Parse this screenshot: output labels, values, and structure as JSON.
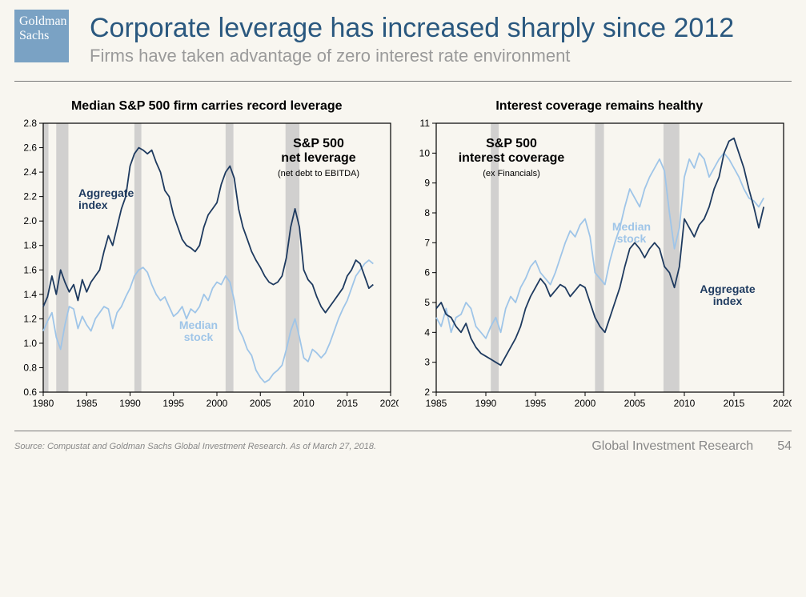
{
  "logo": {
    "line1": "Goldman",
    "line2": "Sachs"
  },
  "title": "Corporate leverage has increased sharply since 2012",
  "subtitle": "Firms have taken advantage of zero interest rate environment",
  "footer": {
    "source": "Source: Compustat and Goldman Sachs Global Investment Research. As of March 27, 2018.",
    "group": "Global Investment Research",
    "page": "54"
  },
  "colors": {
    "aggregate": "#1e3a5f",
    "median": "#9fc5e8",
    "recession": "#c0c0c0",
    "axis": "#000000",
    "grid": "#d0d0d0",
    "bg": "#f8f6f0"
  },
  "chart_left": {
    "title": "Median S&P 500 firm carries record leverage",
    "annotation_title": "S&P 500\nnet leverage",
    "annotation_sub": "(net debt to EBITDA)",
    "label_aggregate": "Aggregate\nindex",
    "label_median": "Median\nstock",
    "type": "line",
    "x_domain": [
      1980,
      2020
    ],
    "x_ticks": [
      1980,
      1985,
      1990,
      1995,
      2000,
      2005,
      2010,
      2015,
      2020
    ],
    "y_domain": [
      0.6,
      2.8
    ],
    "y_ticks": [
      0.6,
      0.8,
      1.0,
      1.2,
      1.4,
      1.6,
      1.8,
      2.0,
      2.2,
      2.4,
      2.6,
      2.8
    ],
    "tick_fontsize": 12,
    "line_width": 1.8,
    "recessions": [
      [
        1980,
        1980.6
      ],
      [
        1981.5,
        1982.9
      ],
      [
        1990.5,
        1991.3
      ],
      [
        2001,
        2001.9
      ],
      [
        2007.9,
        2009.5
      ]
    ],
    "series_aggregate": [
      [
        1980,
        1.3
      ],
      [
        1980.5,
        1.38
      ],
      [
        1981,
        1.55
      ],
      [
        1981.5,
        1.4
      ],
      [
        1982,
        1.6
      ],
      [
        1982.5,
        1.5
      ],
      [
        1983,
        1.42
      ],
      [
        1983.5,
        1.48
      ],
      [
        1984,
        1.35
      ],
      [
        1984.5,
        1.52
      ],
      [
        1985,
        1.42
      ],
      [
        1985.5,
        1.5
      ],
      [
        1986,
        1.55
      ],
      [
        1986.5,
        1.6
      ],
      [
        1987,
        1.75
      ],
      [
        1987.5,
        1.88
      ],
      [
        1988,
        1.8
      ],
      [
        1988.5,
        1.95
      ],
      [
        1989,
        2.1
      ],
      [
        1989.5,
        2.2
      ],
      [
        1990,
        2.45
      ],
      [
        1990.5,
        2.55
      ],
      [
        1991,
        2.6
      ],
      [
        1991.5,
        2.58
      ],
      [
        1992,
        2.55
      ],
      [
        1992.5,
        2.58
      ],
      [
        1993,
        2.48
      ],
      [
        1993.5,
        2.4
      ],
      [
        1994,
        2.25
      ],
      [
        1994.5,
        2.2
      ],
      [
        1995,
        2.05
      ],
      [
        1995.5,
        1.95
      ],
      [
        1996,
        1.85
      ],
      [
        1996.5,
        1.8
      ],
      [
        1997,
        1.78
      ],
      [
        1997.5,
        1.75
      ],
      [
        1998,
        1.8
      ],
      [
        1998.5,
        1.95
      ],
      [
        1999,
        2.05
      ],
      [
        1999.5,
        2.1
      ],
      [
        2000,
        2.15
      ],
      [
        2000.5,
        2.3
      ],
      [
        2001,
        2.4
      ],
      [
        2001.5,
        2.45
      ],
      [
        2002,
        2.35
      ],
      [
        2002.5,
        2.1
      ],
      [
        2003,
        1.95
      ],
      [
        2003.5,
        1.85
      ],
      [
        2004,
        1.75
      ],
      [
        2004.5,
        1.68
      ],
      [
        2005,
        1.62
      ],
      [
        2005.5,
        1.55
      ],
      [
        2006,
        1.5
      ],
      [
        2006.5,
        1.48
      ],
      [
        2007,
        1.5
      ],
      [
        2007.5,
        1.55
      ],
      [
        2008,
        1.7
      ],
      [
        2008.5,
        1.95
      ],
      [
        2009,
        2.1
      ],
      [
        2009.5,
        1.95
      ],
      [
        2010,
        1.6
      ],
      [
        2010.5,
        1.52
      ],
      [
        2011,
        1.48
      ],
      [
        2011.5,
        1.38
      ],
      [
        2012,
        1.3
      ],
      [
        2012.5,
        1.25
      ],
      [
        2013,
        1.3
      ],
      [
        2013.5,
        1.35
      ],
      [
        2014,
        1.4
      ],
      [
        2014.5,
        1.45
      ],
      [
        2015,
        1.55
      ],
      [
        2015.5,
        1.6
      ],
      [
        2016,
        1.68
      ],
      [
        2016.5,
        1.65
      ],
      [
        2017,
        1.55
      ],
      [
        2017.5,
        1.45
      ],
      [
        2018,
        1.48
      ]
    ],
    "series_median": [
      [
        1980,
        1.1
      ],
      [
        1980.5,
        1.18
      ],
      [
        1981,
        1.25
      ],
      [
        1981.5,
        1.05
      ],
      [
        1982,
        0.95
      ],
      [
        1982.5,
        1.15
      ],
      [
        1983,
        1.3
      ],
      [
        1983.5,
        1.28
      ],
      [
        1984,
        1.12
      ],
      [
        1984.5,
        1.22
      ],
      [
        1985,
        1.15
      ],
      [
        1985.5,
        1.1
      ],
      [
        1986,
        1.2
      ],
      [
        1986.5,
        1.25
      ],
      [
        1987,
        1.3
      ],
      [
        1987.5,
        1.28
      ],
      [
        1988,
        1.12
      ],
      [
        1988.5,
        1.25
      ],
      [
        1989,
        1.3
      ],
      [
        1989.5,
        1.38
      ],
      [
        1990,
        1.45
      ],
      [
        1990.5,
        1.55
      ],
      [
        1991,
        1.6
      ],
      [
        1991.5,
        1.62
      ],
      [
        1992,
        1.58
      ],
      [
        1992.5,
        1.48
      ],
      [
        1993,
        1.4
      ],
      [
        1993.5,
        1.35
      ],
      [
        1994,
        1.38
      ],
      [
        1994.5,
        1.3
      ],
      [
        1995,
        1.22
      ],
      [
        1995.5,
        1.25
      ],
      [
        1996,
        1.3
      ],
      [
        1996.5,
        1.2
      ],
      [
        1997,
        1.28
      ],
      [
        1997.5,
        1.25
      ],
      [
        1998,
        1.3
      ],
      [
        1998.5,
        1.4
      ],
      [
        1999,
        1.35
      ],
      [
        1999.5,
        1.45
      ],
      [
        2000,
        1.5
      ],
      [
        2000.5,
        1.48
      ],
      [
        2001,
        1.55
      ],
      [
        2001.5,
        1.5
      ],
      [
        2002,
        1.35
      ],
      [
        2002.5,
        1.12
      ],
      [
        2003,
        1.05
      ],
      [
        2003.5,
        0.95
      ],
      [
        2004,
        0.9
      ],
      [
        2004.5,
        0.78
      ],
      [
        2005,
        0.72
      ],
      [
        2005.5,
        0.68
      ],
      [
        2006,
        0.7
      ],
      [
        2006.5,
        0.75
      ],
      [
        2007,
        0.78
      ],
      [
        2007.5,
        0.82
      ],
      [
        2008,
        0.95
      ],
      [
        2008.5,
        1.1
      ],
      [
        2009,
        1.2
      ],
      [
        2009.5,
        1.05
      ],
      [
        2010,
        0.88
      ],
      [
        2010.5,
        0.85
      ],
      [
        2011,
        0.95
      ],
      [
        2011.5,
        0.92
      ],
      [
        2012,
        0.88
      ],
      [
        2012.5,
        0.92
      ],
      [
        2013,
        1.0
      ],
      [
        2013.5,
        1.1
      ],
      [
        2014,
        1.2
      ],
      [
        2014.5,
        1.28
      ],
      [
        2015,
        1.35
      ],
      [
        2015.5,
        1.45
      ],
      [
        2016,
        1.55
      ],
      [
        2016.5,
        1.6
      ],
      [
        2017,
        1.65
      ],
      [
        2017.5,
        1.68
      ],
      [
        2018,
        1.65
      ]
    ]
  },
  "chart_right": {
    "title": "Interest coverage remains healthy",
    "annotation_title": "S&P 500\ninterest coverage",
    "annotation_sub": "(ex Financials)",
    "label_aggregate": "Aggregate\nindex",
    "label_median": "Median\nstock",
    "type": "line",
    "x_domain": [
      1985,
      2020
    ],
    "x_ticks": [
      1985,
      1990,
      1995,
      2000,
      2005,
      2010,
      2015,
      2020
    ],
    "y_domain": [
      2,
      11
    ],
    "y_ticks": [
      2,
      3,
      4,
      5,
      6,
      7,
      8,
      9,
      10,
      11
    ],
    "tick_fontsize": 12,
    "line_width": 1.8,
    "recessions": [
      [
        1990.5,
        1991.3
      ],
      [
        2001,
        2001.9
      ],
      [
        2007.9,
        2009.5
      ]
    ],
    "series_aggregate": [
      [
        1985,
        4.8
      ],
      [
        1985.5,
        5.0
      ],
      [
        1986,
        4.6
      ],
      [
        1986.5,
        4.5
      ],
      [
        1987,
        4.2
      ],
      [
        1987.5,
        4.0
      ],
      [
        1988,
        4.3
      ],
      [
        1988.5,
        3.8
      ],
      [
        1989,
        3.5
      ],
      [
        1989.5,
        3.3
      ],
      [
        1990,
        3.2
      ],
      [
        1990.5,
        3.1
      ],
      [
        1991,
        3.0
      ],
      [
        1991.5,
        2.9
      ],
      [
        1992,
        3.2
      ],
      [
        1992.5,
        3.5
      ],
      [
        1993,
        3.8
      ],
      [
        1993.5,
        4.2
      ],
      [
        1994,
        4.8
      ],
      [
        1994.5,
        5.2
      ],
      [
        1995,
        5.5
      ],
      [
        1995.5,
        5.8
      ],
      [
        1996,
        5.6
      ],
      [
        1996.5,
        5.2
      ],
      [
        1997,
        5.4
      ],
      [
        1997.5,
        5.6
      ],
      [
        1998,
        5.5
      ],
      [
        1998.5,
        5.2
      ],
      [
        1999,
        5.4
      ],
      [
        1999.5,
        5.6
      ],
      [
        2000,
        5.5
      ],
      [
        2000.5,
        5.0
      ],
      [
        2001,
        4.5
      ],
      [
        2001.5,
        4.2
      ],
      [
        2002,
        4.0
      ],
      [
        2002.5,
        4.5
      ],
      [
        2003,
        5.0
      ],
      [
        2003.5,
        5.5
      ],
      [
        2004,
        6.2
      ],
      [
        2004.5,
        6.8
      ],
      [
        2005,
        7.0
      ],
      [
        2005.5,
        6.8
      ],
      [
        2006,
        6.5
      ],
      [
        2006.5,
        6.8
      ],
      [
        2007,
        7.0
      ],
      [
        2007.5,
        6.8
      ],
      [
        2008,
        6.2
      ],
      [
        2008.5,
        6.0
      ],
      [
        2009,
        5.5
      ],
      [
        2009.5,
        6.2
      ],
      [
        2010,
        7.8
      ],
      [
        2010.5,
        7.5
      ],
      [
        2011,
        7.2
      ],
      [
        2011.5,
        7.6
      ],
      [
        2012,
        7.8
      ],
      [
        2012.5,
        8.2
      ],
      [
        2013,
        8.8
      ],
      [
        2013.5,
        9.2
      ],
      [
        2014,
        10.0
      ],
      [
        2014.5,
        10.4
      ],
      [
        2015,
        10.5
      ],
      [
        2015.5,
        10.0
      ],
      [
        2016,
        9.5
      ],
      [
        2016.5,
        8.8
      ],
      [
        2017,
        8.2
      ],
      [
        2017.5,
        7.5
      ],
      [
        2018,
        8.2
      ]
    ],
    "series_median": [
      [
        1985,
        4.5
      ],
      [
        1985.5,
        4.2
      ],
      [
        1986,
        4.8
      ],
      [
        1986.5,
        4.0
      ],
      [
        1987,
        4.5
      ],
      [
        1987.5,
        4.6
      ],
      [
        1988,
        5.0
      ],
      [
        1988.5,
        4.8
      ],
      [
        1989,
        4.2
      ],
      [
        1989.5,
        4.0
      ],
      [
        1990,
        3.8
      ],
      [
        1990.5,
        4.2
      ],
      [
        1991,
        4.5
      ],
      [
        1991.5,
        4.0
      ],
      [
        1992,
        4.8
      ],
      [
        1992.5,
        5.2
      ],
      [
        1993,
        5.0
      ],
      [
        1993.5,
        5.5
      ],
      [
        1994,
        5.8
      ],
      [
        1994.5,
        6.2
      ],
      [
        1995,
        6.4
      ],
      [
        1995.5,
        6.0
      ],
      [
        1996,
        5.8
      ],
      [
        1996.5,
        5.6
      ],
      [
        1997,
        6.0
      ],
      [
        1997.5,
        6.5
      ],
      [
        1998,
        7.0
      ],
      [
        1998.5,
        7.4
      ],
      [
        1999,
        7.2
      ],
      [
        1999.5,
        7.6
      ],
      [
        2000,
        7.8
      ],
      [
        2000.5,
        7.2
      ],
      [
        2001,
        6.0
      ],
      [
        2001.5,
        5.8
      ],
      [
        2002,
        5.6
      ],
      [
        2002.5,
        6.4
      ],
      [
        2003,
        7.0
      ],
      [
        2003.5,
        7.5
      ],
      [
        2004,
        8.2
      ],
      [
        2004.5,
        8.8
      ],
      [
        2005,
        8.5
      ],
      [
        2005.5,
        8.2
      ],
      [
        2006,
        8.8
      ],
      [
        2006.5,
        9.2
      ],
      [
        2007,
        9.5
      ],
      [
        2007.5,
        9.8
      ],
      [
        2008,
        9.4
      ],
      [
        2008.5,
        8.0
      ],
      [
        2009,
        6.8
      ],
      [
        2009.5,
        7.5
      ],
      [
        2010,
        9.2
      ],
      [
        2010.5,
        9.8
      ],
      [
        2011,
        9.5
      ],
      [
        2011.5,
        10.0
      ],
      [
        2012,
        9.8
      ],
      [
        2012.5,
        9.2
      ],
      [
        2013,
        9.5
      ],
      [
        2013.5,
        9.8
      ],
      [
        2014,
        10.0
      ],
      [
        2014.5,
        9.8
      ],
      [
        2015,
        9.5
      ],
      [
        2015.5,
        9.2
      ],
      [
        2016,
        8.8
      ],
      [
        2016.5,
        8.5
      ],
      [
        2017,
        8.4
      ],
      [
        2017.5,
        8.2
      ],
      [
        2018,
        8.5
      ]
    ]
  }
}
